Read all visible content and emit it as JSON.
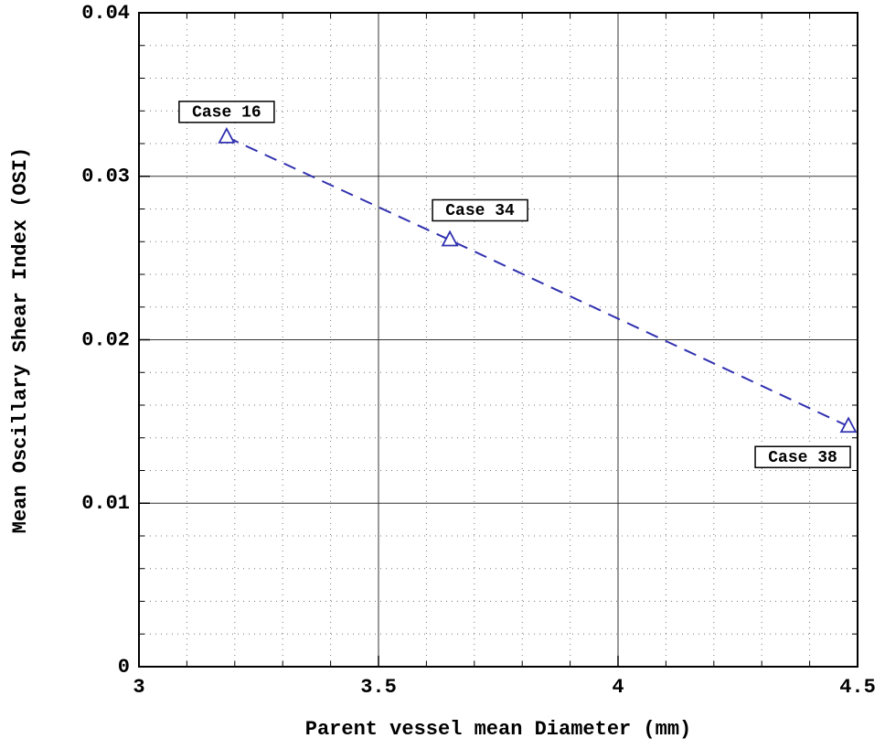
{
  "chart_data": {
    "type": "line",
    "xlabel": "Parent vessel mean Diameter (mm)",
    "ylabel": "Mean Oscillary Shear Index (OSI)",
    "xlim": [
      3,
      4.5
    ],
    "xticks": [
      3,
      3.5,
      4,
      4.5
    ],
    "ylim": [
      0,
      0.04
    ],
    "yticks": [
      0,
      0.01,
      0.02,
      0.03,
      0.04
    ],
    "xminor": [
      3.1,
      3.2,
      3.3,
      3.4,
      3.6,
      3.7,
      3.8,
      3.9,
      4.1,
      4.2,
      4.3,
      4.4
    ],
    "yminor": [
      0.002,
      0.004,
      0.006,
      0.008,
      0.012,
      0.014,
      0.016,
      0.018,
      0.022,
      0.024,
      0.026,
      0.028,
      0.032,
      0.034,
      0.036,
      0.038
    ],
    "grid": true,
    "line_style": "dashed",
    "marker": "triangle",
    "series": [
      {
        "color": "#3030b0",
        "x": [
          3.183,
          3.649,
          4.481
        ],
        "values": [
          0.0324,
          0.0261,
          0.0147
        ],
        "point_labels": [
          "Case 16",
          "Case 34",
          "Case 38"
        ]
      }
    ]
  }
}
